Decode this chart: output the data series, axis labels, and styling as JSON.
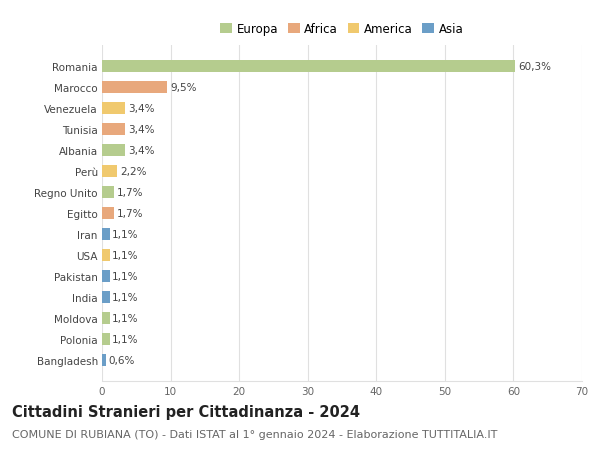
{
  "countries": [
    "Romania",
    "Marocco",
    "Venezuela",
    "Tunisia",
    "Albania",
    "Perù",
    "Regno Unito",
    "Egitto",
    "Iran",
    "USA",
    "Pakistan",
    "India",
    "Moldova",
    "Polonia",
    "Bangladesh"
  ],
  "values": [
    60.3,
    9.5,
    3.4,
    3.4,
    3.4,
    2.2,
    1.7,
    1.7,
    1.1,
    1.1,
    1.1,
    1.1,
    1.1,
    1.1,
    0.6
  ],
  "labels": [
    "60,3%",
    "9,5%",
    "3,4%",
    "3,4%",
    "3,4%",
    "2,2%",
    "1,7%",
    "1,7%",
    "1,1%",
    "1,1%",
    "1,1%",
    "1,1%",
    "1,1%",
    "1,1%",
    "0,6%"
  ],
  "continents": [
    "Europa",
    "Africa",
    "America",
    "Africa",
    "Europa",
    "America",
    "Europa",
    "Africa",
    "Asia",
    "America",
    "Asia",
    "Asia",
    "Europa",
    "Europa",
    "Asia"
  ],
  "colors": {
    "Europa": "#b5cc8e",
    "Africa": "#e8a87c",
    "America": "#f0c96e",
    "Asia": "#6b9ec7"
  },
  "title": "Cittadini Stranieri per Cittadinanza - 2024",
  "subtitle": "COMUNE DI RUBIANA (TO) - Dati ISTAT al 1° gennaio 2024 - Elaborazione TUTTITALIA.IT",
  "xlim": [
    0,
    70
  ],
  "xticks": [
    0,
    10,
    20,
    30,
    40,
    50,
    60,
    70
  ],
  "background_color": "#ffffff",
  "grid_color": "#e0e0e0",
  "bar_height": 0.55,
  "title_fontsize": 10.5,
  "subtitle_fontsize": 8,
  "label_fontsize": 7.5,
  "tick_fontsize": 7.5,
  "legend_fontsize": 8.5
}
